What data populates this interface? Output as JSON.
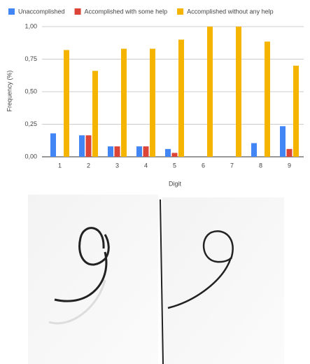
{
  "chart_data": {
    "type": "bar",
    "x_label": "Digit",
    "y_label": "Frequency (%)",
    "categories": [
      "1",
      "2",
      "3",
      "4",
      "5",
      "6",
      "7",
      "8",
      "9"
    ],
    "series": [
      {
        "name": "Unaccomplished",
        "color": "#4285f4",
        "values": [
          0.18,
          0.165,
          0.08,
          0.08,
          0.06,
          0,
          0,
          0.105,
          0.235
        ]
      },
      {
        "name": "Accomplished with some help",
        "color": "#db4437",
        "values": [
          0,
          0.165,
          0.08,
          0.08,
          0.03,
          0,
          0,
          0,
          0.06
        ]
      },
      {
        "name": "Accomplished without any help",
        "color": "#f4b400",
        "values": [
          0.82,
          0.66,
          0.83,
          0.83,
          0.9,
          1.0,
          1.0,
          0.885,
          0.7
        ]
      }
    ],
    "ylim": [
      0,
      1
    ],
    "yticks": [
      {
        "value": 0,
        "label": "0,00"
      },
      {
        "value": 0.25,
        "label": "0,25"
      },
      {
        "value": 0.5,
        "label": "0,50"
      },
      {
        "value": 0.75,
        "label": "0,75"
      },
      {
        "value": 1,
        "label": "1,00"
      }
    ],
    "grid": true
  }
}
